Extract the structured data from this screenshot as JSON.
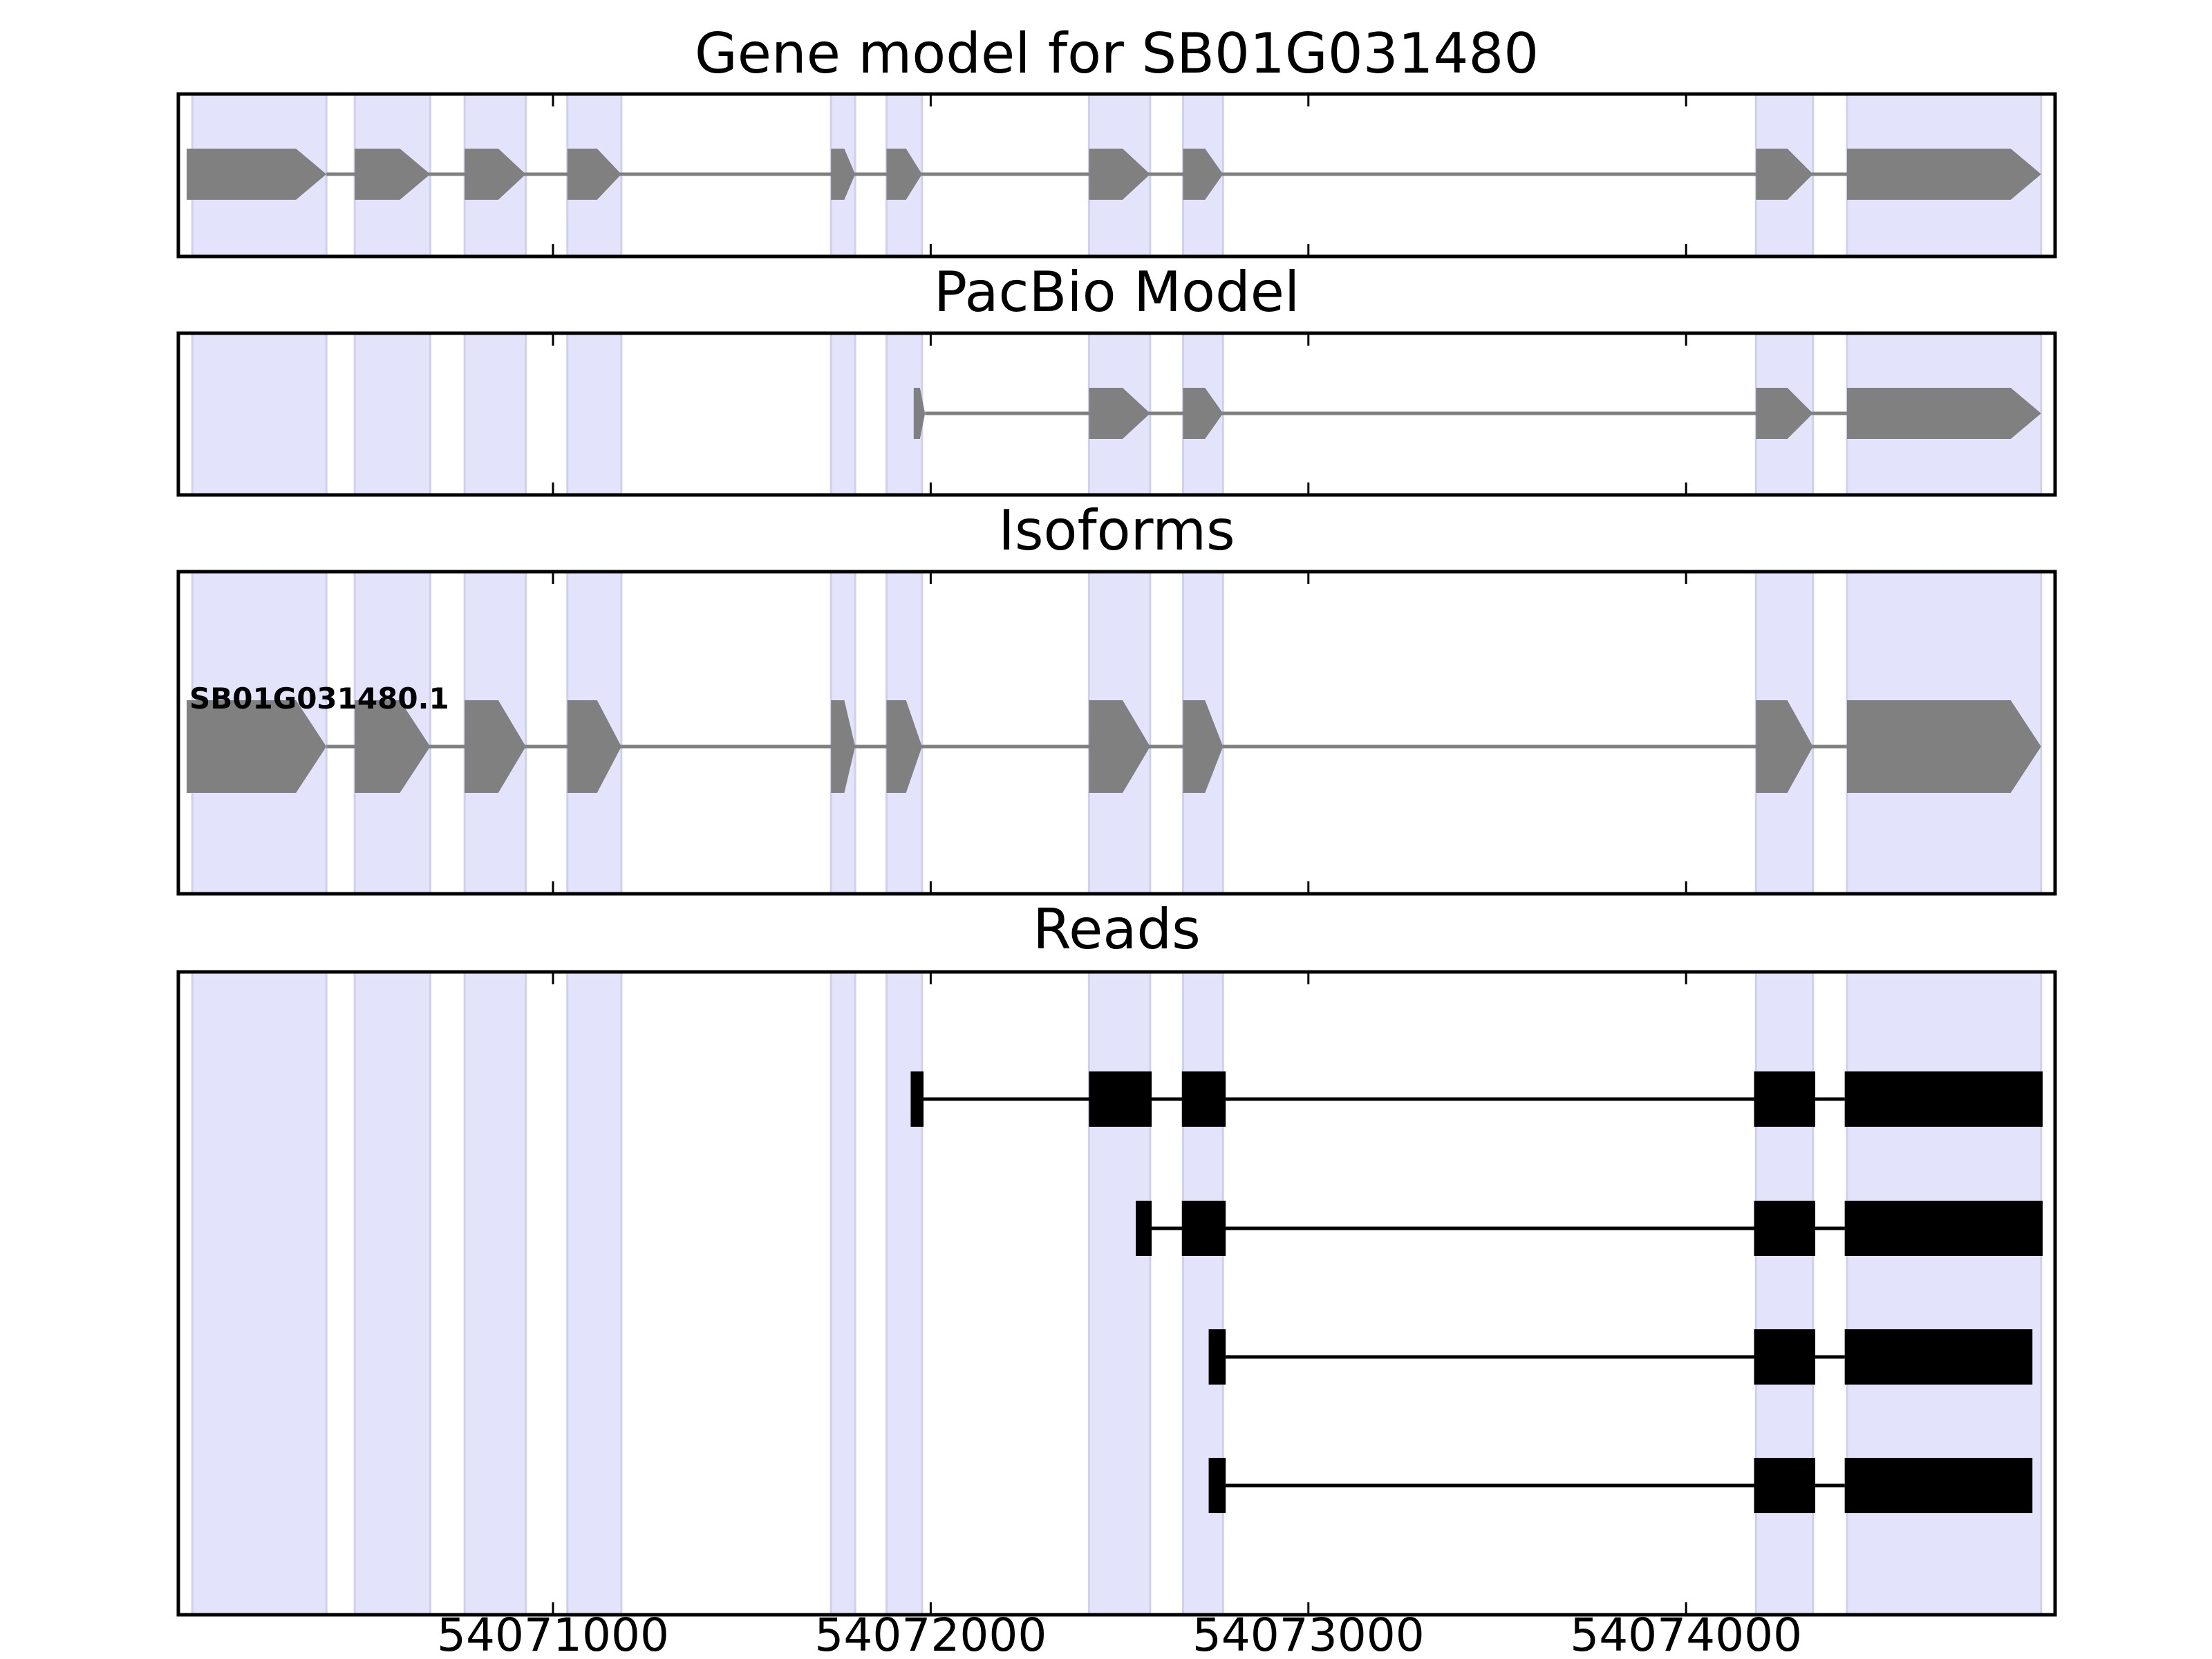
{
  "chart_data": {
    "type": "gene-structure",
    "xlim": [
      54070008,
      54074977
    ],
    "xticks": [
      54071000,
      54072000,
      54073000,
      54074000
    ],
    "xtick_labels": [
      "54071000",
      "54072000",
      "54073000",
      "54074000"
    ],
    "shaded_exon_regions": [
      [
        54070045,
        54070400
      ],
      [
        54070475,
        54070675
      ],
      [
        54070766,
        54070928
      ],
      [
        54071038,
        54071181
      ],
      [
        54071736,
        54071800
      ],
      [
        54071883,
        54071977
      ],
      [
        54072419,
        54072581
      ],
      [
        54072668,
        54072774
      ],
      [
        54074185,
        54074336
      ],
      [
        54074426,
        54074940
      ]
    ],
    "panels": [
      {
        "title": "Gene model for SB01G031480",
        "kind": "model",
        "tracks": [
          {
            "label": "",
            "exons": [
              [
                54070030,
                54070400
              ],
              [
                54070475,
                54070675
              ],
              [
                54070766,
                54070928
              ],
              [
                54071038,
                54071181
              ],
              [
                54071736,
                54071800
              ],
              [
                54071883,
                54071977
              ],
              [
                54072419,
                54072581
              ],
              [
                54072668,
                54072774
              ],
              [
                54074185,
                54074336
              ],
              [
                54074426,
                54074940
              ]
            ]
          }
        ]
      },
      {
        "title": "PacBio Model",
        "kind": "model",
        "tracks": [
          {
            "label": "",
            "exons": [
              [
                54071955,
                54071985
              ],
              [
                54072419,
                54072581
              ],
              [
                54072668,
                54072774
              ],
              [
                54074185,
                54074336
              ],
              [
                54074426,
                54074940
              ]
            ]
          }
        ]
      },
      {
        "title": "Isoforms",
        "kind": "isoform",
        "tracks": [
          {
            "label": "SB01G031480.1",
            "exons": [
              [
                54070030,
                54070400
              ],
              [
                54070475,
                54070675
              ],
              [
                54070766,
                54070928
              ],
              [
                54071038,
                54071181
              ],
              [
                54071736,
                54071800
              ],
              [
                54071883,
                54071977
              ],
              [
                54072419,
                54072581
              ],
              [
                54072668,
                54072774
              ],
              [
                54074185,
                54074336
              ],
              [
                54074426,
                54074940
              ]
            ]
          }
        ]
      },
      {
        "title": "Reads",
        "kind": "reads",
        "tracks": [
          {
            "label": "",
            "exons": [
              [
                54071947,
                54071981
              ],
              [
                54072419,
                54072585
              ],
              [
                54072665,
                54072781
              ],
              [
                54074180,
                54074342
              ],
              [
                54074420,
                54074944
              ]
            ]
          },
          {
            "label": "",
            "exons": [
              [
                54072543,
                54072585
              ],
              [
                54072665,
                54072781
              ],
              [
                54074180,
                54074342
              ],
              [
                54074420,
                54074944
              ]
            ]
          },
          {
            "label": "",
            "exons": [
              [
                54072736,
                54072781
              ],
              [
                54074180,
                54074342
              ],
              [
                54074420,
                54074917
              ]
            ]
          },
          {
            "label": "",
            "exons": [
              [
                54072736,
                54072781
              ],
              [
                54074180,
                54074342
              ],
              [
                54074420,
                54074917
              ]
            ]
          }
        ]
      }
    ],
    "colors": {
      "shade": "#e3e3fb",
      "shade_edge": "#d0d0ee",
      "model": "#808080",
      "reads": "#000000"
    }
  }
}
